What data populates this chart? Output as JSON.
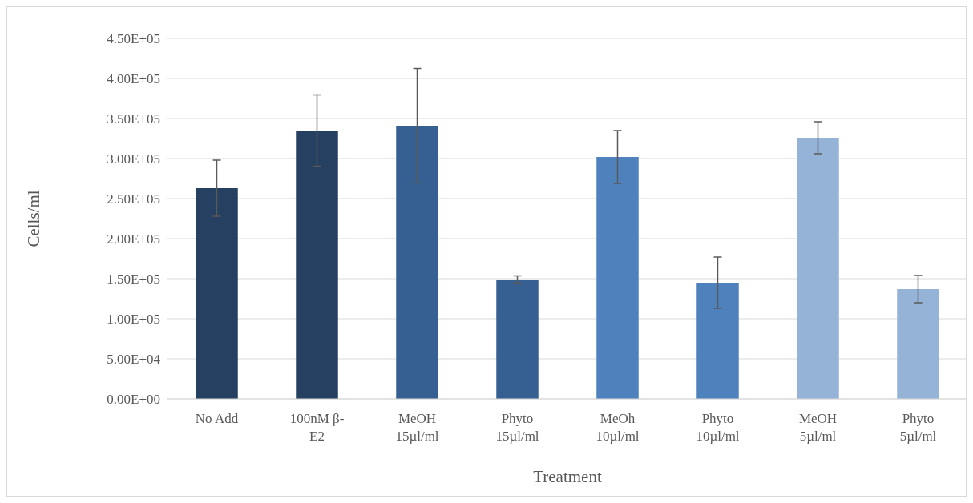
{
  "chart_data": {
    "type": "bar",
    "xlabel": "Treatment",
    "ylabel": "Cells/ml",
    "categories": [
      "No Add",
      "100nM β-E2",
      "MeOH 15µl/ml",
      "Phyto 15µl/ml",
      "MeOh 10µl/ml",
      "Phyto 10µl/ml",
      "MeOH 5µl/ml",
      "Phyto 5µl/ml"
    ],
    "values": [
      263000,
      335000,
      341000,
      149000,
      302000,
      145000,
      326000,
      137000
    ],
    "errors": [
      35000,
      44500,
      71500,
      4500,
      33000,
      32000,
      20000,
      17000
    ],
    "colors": [
      "#264061",
      "#264061",
      "#366092",
      "#366092",
      "#4f81bd",
      "#4f81bd",
      "#95b3d7",
      "#95b3d7"
    ],
    "ylim": [
      0,
      450000
    ],
    "yticks": [
      {
        "value": 0,
        "label": "0.00E+00"
      },
      {
        "value": 50000,
        "label": "5.00E+04"
      },
      {
        "value": 100000,
        "label": "1.00E+05"
      },
      {
        "value": 150000,
        "label": "1.50E+05"
      },
      {
        "value": 200000,
        "label": "2.00E+05"
      },
      {
        "value": 250000,
        "label": "2.50E+05"
      },
      {
        "value": 300000,
        "label": "3.00E+05"
      },
      {
        "value": 350000,
        "label": "3.50E+05"
      },
      {
        "value": 400000,
        "label": "4.00E+05"
      },
      {
        "value": 450000,
        "label": "4.50E+05"
      }
    ],
    "grid": "y"
  }
}
